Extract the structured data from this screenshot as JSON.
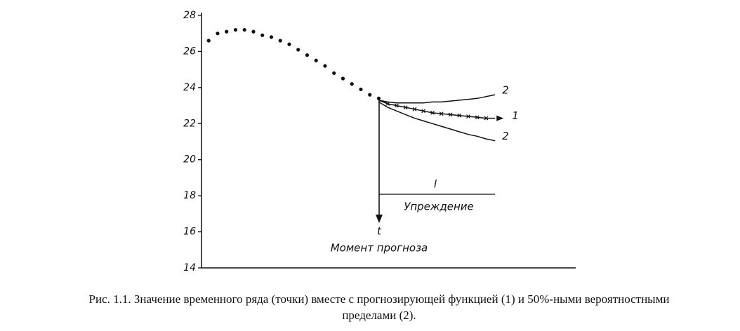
{
  "chart_data": {
    "type": "line",
    "xlim": [
      0.2,
      42
    ],
    "ylim": [
      14,
      28
    ],
    "yticks": [
      14,
      16,
      18,
      20,
      22,
      24,
      26,
      28
    ],
    "series": [
      {
        "style": "dots",
        "color": "#111",
        "x": [
          1,
          2,
          3,
          4,
          5,
          6,
          7,
          8,
          9,
          10,
          11,
          12,
          13,
          14,
          15,
          16,
          17,
          18,
          19,
          20
        ],
        "values": [
          26.6,
          27.0,
          27.1,
          27.2,
          27.2,
          27.1,
          26.9,
          26.8,
          26.6,
          26.4,
          26.1,
          25.8,
          25.5,
          25.2,
          24.8,
          24.5,
          24.2,
          23.9,
          23.6,
          23.4
        ]
      },
      {
        "name": "1",
        "style": "cross-line",
        "color": "#111",
        "x": [
          20,
          21,
          22,
          23,
          24,
          25,
          26,
          27,
          28,
          29,
          30,
          31,
          32,
          33
        ],
        "values": [
          23.3,
          23.1,
          23.0,
          22.9,
          22.8,
          22.7,
          22.6,
          22.55,
          22.5,
          22.45,
          22.4,
          22.35,
          22.3,
          22.3
        ]
      },
      {
        "name": "2",
        "style": "line",
        "color": "#111",
        "x": [
          20,
          21,
          22,
          23,
          24,
          25,
          26,
          27,
          28,
          29,
          30,
          31,
          32,
          33
        ],
        "values": [
          23.3,
          23.2,
          23.15,
          23.15,
          23.15,
          23.15,
          23.2,
          23.2,
          23.25,
          23.3,
          23.35,
          23.4,
          23.5,
          23.6
        ]
      },
      {
        "name": "2",
        "style": "line",
        "color": "#111",
        "x": [
          20,
          21,
          22,
          23,
          24,
          25,
          26,
          27,
          28,
          29,
          30,
          31,
          32,
          33
        ],
        "values": [
          23.2,
          22.9,
          22.7,
          22.5,
          22.3,
          22.15,
          22.0,
          21.85,
          21.7,
          21.55,
          21.4,
          21.3,
          21.15,
          21.05
        ]
      }
    ],
    "annotations": {
      "lead_symbol": "l",
      "lead": "Упреждение",
      "time_symbol": "t",
      "forecast_moment": "Момент прогноза"
    },
    "caption": [
      "Рис. 1.1. Значение временного ряда (точки) вместе с прогнозирующей функцией (1) и 50%-ными вероятностными",
      "пределами (2)."
    ]
  }
}
